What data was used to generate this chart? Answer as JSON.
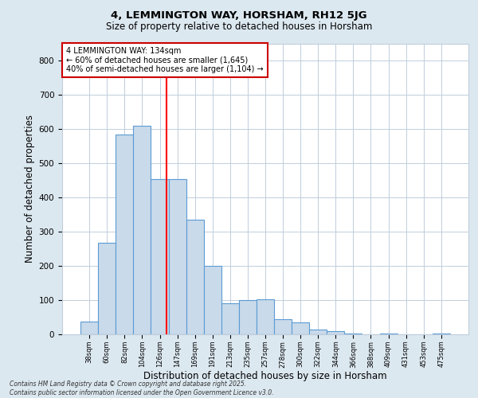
{
  "title1": "4, LEMMINGTON WAY, HORSHAM, RH12 5JG",
  "title2": "Size of property relative to detached houses in Horsham",
  "xlabel": "Distribution of detached houses by size in Horsham",
  "ylabel": "Number of detached properties",
  "categories": [
    "38sqm",
    "60sqm",
    "82sqm",
    "104sqm",
    "126sqm",
    "147sqm",
    "169sqm",
    "191sqm",
    "213sqm",
    "235sqm",
    "257sqm",
    "278sqm",
    "300sqm",
    "322sqm",
    "344sqm",
    "366sqm",
    "388sqm",
    "409sqm",
    "431sqm",
    "453sqm",
    "475sqm"
  ],
  "values": [
    38,
    268,
    585,
    610,
    455,
    455,
    335,
    200,
    90,
    100,
    103,
    45,
    35,
    15,
    10,
    2,
    0,
    2,
    0,
    0,
    2
  ],
  "bar_color": "#c9daea",
  "bar_edge_color": "#5b9bd5",
  "bar_linewidth": 0.8,
  "annotation_text": "4 LEMMINGTON WAY: 134sqm\n← 60% of detached houses are smaller (1,645)\n40% of semi-detached houses are larger (1,104) →",
  "annotation_box_color": "#ffffff",
  "annotation_box_edge": "#cc0000",
  "grid_color": "#c0cedb",
  "background_color": "#dce8f0",
  "plot_background": "#ffffff",
  "footer": "Contains HM Land Registry data © Crown copyright and database right 2025.\nContains public sector information licensed under the Open Government Licence v3.0.",
  "ylim": [
    0,
    850
  ],
  "yticks": [
    0,
    100,
    200,
    300,
    400,
    500,
    600,
    700,
    800
  ]
}
